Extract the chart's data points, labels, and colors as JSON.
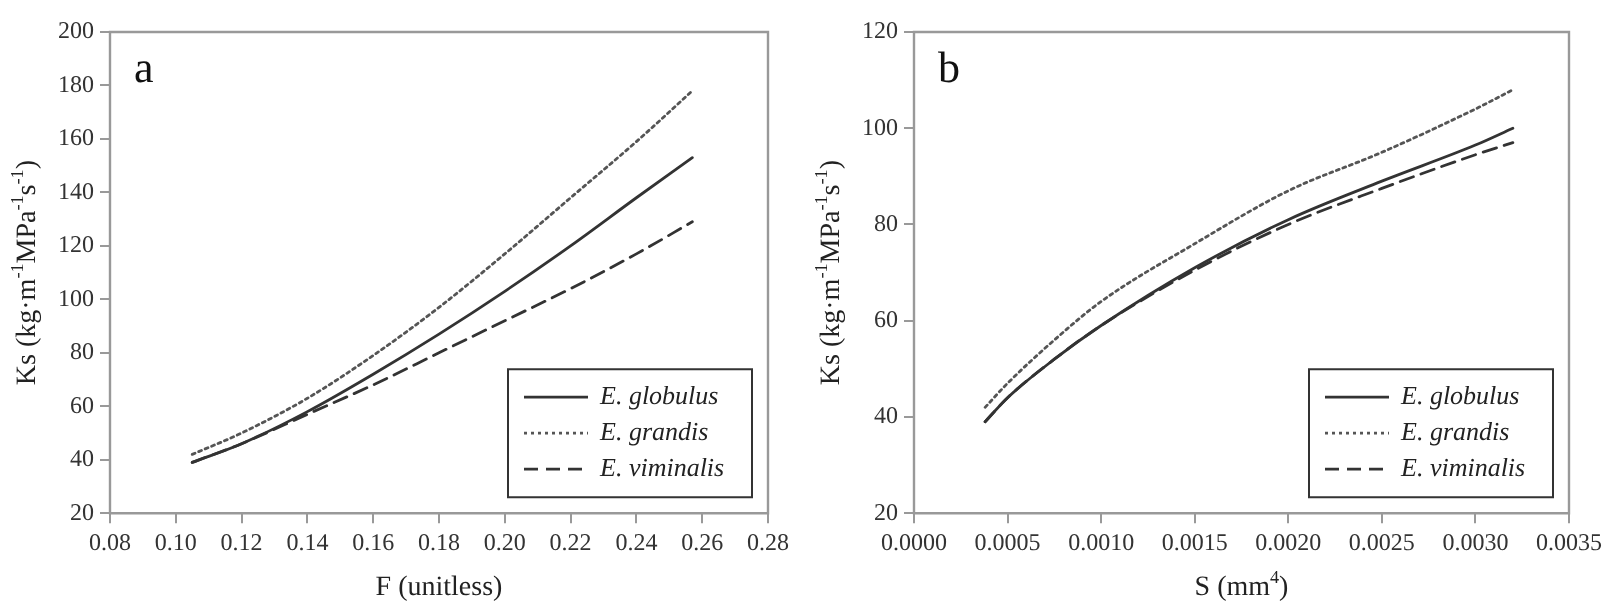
{
  "chart_data": [
    {
      "type": "line",
      "annotations": [
        "a"
      ],
      "xlabel": "F (unitless)",
      "ylabel": "Ks (kg·m$^{-1}$MPa$^{-1}$s$^{-1}$)",
      "x": [
        0.105,
        0.12,
        0.14,
        0.16,
        0.18,
        0.2,
        0.22,
        0.24,
        0.257
      ],
      "series": [
        {
          "name": "E. globulus",
          "color": "#333333",
          "line_style": "solid",
          "values": [
            39,
            46,
            58,
            72,
            87,
            103,
            120,
            138,
            153
          ]
        },
        {
          "name": "E. grandis",
          "color": "#555555",
          "line_style": "dotted",
          "values": [
            42,
            50,
            63,
            79,
            97,
            117,
            138,
            159,
            178
          ]
        },
        {
          "name": "E. viminalis",
          "color": "#333333",
          "line_style": "dashed",
          "values": [
            39,
            46,
            57,
            68,
            80,
            92,
            104,
            117,
            129
          ]
        }
      ],
      "xlim": [
        0.08,
        0.28
      ],
      "xticks": [
        0.08,
        {
          "value": 0.1,
          "label": "0.10"
        },
        0.12,
        0.14,
        0.16,
        0.18,
        {
          "value": 0.2,
          "label": "0.20"
        },
        0.22,
        0.24,
        0.26,
        0.28
      ],
      "ylim": [
        20,
        200
      ],
      "yticks": [
        20,
        40,
        60,
        80,
        100,
        120,
        140,
        160,
        180,
        200
      ],
      "grid": false,
      "legend": "bottom right"
    },
    {
      "type": "line",
      "annotations": [
        "b"
      ],
      "xlabel": "S (mm$^{4}$)",
      "ylabel": "Ks (kg·m$^{-1}$MPa$^{-1}$s$^{-1}$)",
      "x": [
        0.00038,
        0.0005,
        0.00075,
        0.001,
        0.0015,
        0.002,
        0.0025,
        0.003,
        0.0032
      ],
      "series": [
        {
          "name": "E. globulus",
          "color": "#333333",
          "line_style": "solid",
          "values": [
            39,
            44,
            52,
            59,
            71,
            81,
            89,
            96.5,
            100
          ]
        },
        {
          "name": "E. grandis",
          "color": "#555555",
          "line_style": "dotted",
          "values": [
            42,
            47,
            56,
            64,
            76,
            87,
            95,
            104,
            108
          ]
        },
        {
          "name": "E. viminalis",
          "color": "#333333",
          "line_style": "dashed",
          "values": [
            39,
            44,
            52,
            59,
            70.5,
            80,
            87.5,
            94.5,
            97
          ]
        }
      ],
      "xlim": [
        0,
        0.0035
      ],
      "xticks": [
        {
          "value": 0,
          "label": "0.0000"
        },
        {
          "value": 0.0005,
          "label": "0.0005"
        },
        {
          "value": 0.001,
          "label": "0.0010"
        },
        {
          "value": 0.0015,
          "label": "0.0015"
        },
        {
          "value": 0.002,
          "label": "0.0020"
        },
        {
          "value": 0.0025,
          "label": "0.0025"
        },
        {
          "value": 0.003,
          "label": "0.0030"
        },
        {
          "value": 0.0035,
          "label": "0.0035"
        }
      ],
      "ylim": [
        20,
        120
      ],
      "yticks": [
        20,
        40,
        60,
        80,
        100,
        120
      ],
      "grid": false,
      "legend": "bottom right"
    }
  ]
}
